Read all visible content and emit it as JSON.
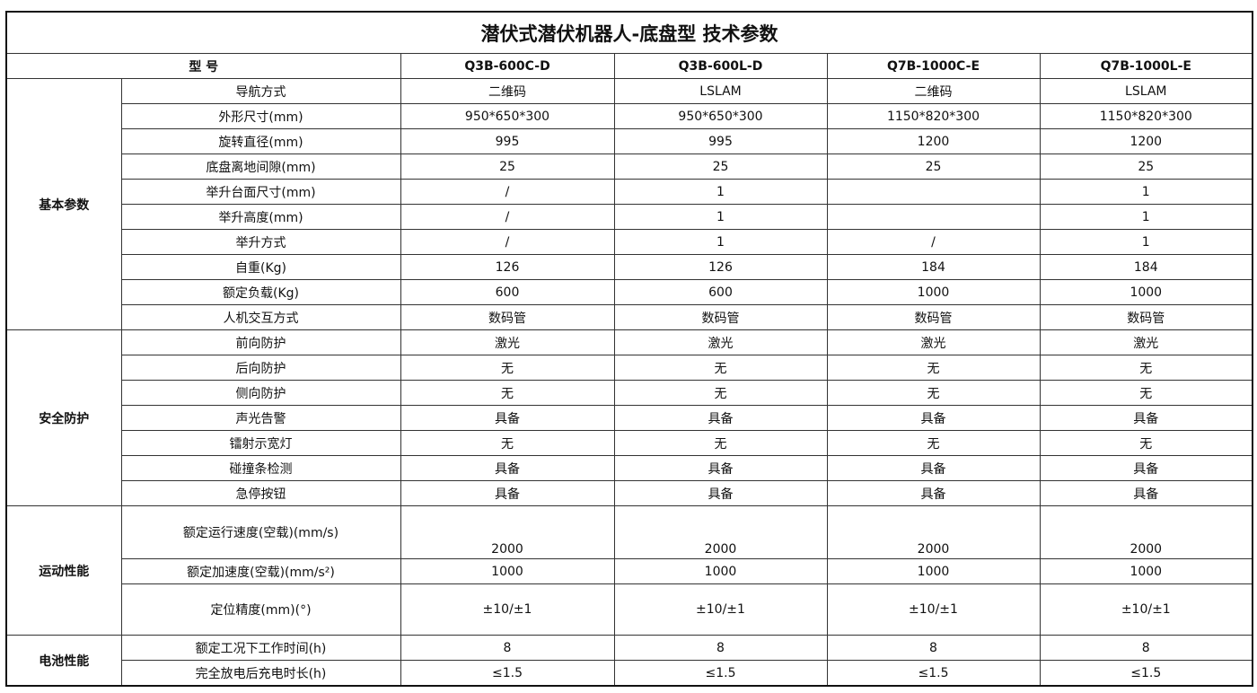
{
  "title": "潜伏式潜伏机器人-底盘型 技术参数",
  "header": {
    "label": "型 号",
    "models": [
      "Q3B-600C-D",
      "Q3B-600L-D",
      "Q7B-1000C-E",
      "Q7B-1000L-E"
    ]
  },
  "groups": [
    {
      "name": "基本参数",
      "rows": [
        {
          "param": "导航方式",
          "values": [
            "二维码",
            "LSLAM",
            "二维码",
            "LSLAM"
          ]
        },
        {
          "param": "外形尺寸(mm)",
          "values": [
            "950*650*300",
            "950*650*300",
            "1150*820*300",
            "1150*820*300"
          ]
        },
        {
          "param": "旋转直径(mm)",
          "values": [
            "995",
            "995",
            "1200",
            "1200"
          ]
        },
        {
          "param": "底盘离地间隙(mm)",
          "values": [
            "25",
            "25",
            "25",
            "25"
          ]
        },
        {
          "param": "举升台面尺寸(mm)",
          "values": [
            "/",
            "1",
            "",
            "1"
          ]
        },
        {
          "param": "举升高度(mm)",
          "values": [
            "/",
            "1",
            "",
            "1"
          ]
        },
        {
          "param": "举升方式",
          "values": [
            "/",
            "1",
            "/",
            "1"
          ]
        },
        {
          "param": "自重(Kg)",
          "values": [
            "126",
            "126",
            "184",
            "184"
          ]
        },
        {
          "param": "额定负载(Kg)",
          "values": [
            "600",
            "600",
            "1000",
            "1000"
          ]
        },
        {
          "param": "人机交互方式",
          "values": [
            "数码管",
            "数码管",
            "数码管",
            "数码管"
          ]
        }
      ]
    },
    {
      "name": "安全防护",
      "rows": [
        {
          "param": "前向防护",
          "values": [
            "激光",
            "激光",
            "激光",
            "激光"
          ]
        },
        {
          "param": "后向防护",
          "values": [
            "无",
            "无",
            "无",
            "无"
          ]
        },
        {
          "param": "侧向防护",
          "values": [
            "无",
            "无",
            "无",
            "无"
          ]
        },
        {
          "param": "声光告警",
          "values": [
            "具备",
            "具备",
            "具备",
            "具备"
          ]
        },
        {
          "param": "镭射示宽灯",
          "values": [
            "无",
            "无",
            "无",
            "无"
          ]
        },
        {
          "param": "碰撞条检测",
          "values": [
            "具备",
            "具备",
            "具备",
            "具备"
          ]
        },
        {
          "param": "急停按钮",
          "values": [
            "具备",
            "具备",
            "具备",
            "具备"
          ]
        }
      ]
    },
    {
      "name": "运动性能",
      "rows": [
        {
          "param": "额定运行速度(空载)(mm/s)",
          "values": [
            "2000",
            "2000",
            "2000",
            "2000"
          ],
          "tall": true,
          "low": true
        },
        {
          "param": "额定加速度(空载)(mm/s²)",
          "values": [
            "1000",
            "1000",
            "1000",
            "1000"
          ]
        },
        {
          "param": "定位精度(mm)(°)",
          "values": [
            "±10/±1",
            "±10/±1",
            "±10/±1",
            "±10/±1"
          ],
          "tall": true
        }
      ]
    },
    {
      "name": "电池性能",
      "rows": [
        {
          "param": "额定工况下工作时间(h)",
          "values": [
            "8",
            "8",
            "8",
            "8"
          ]
        },
        {
          "param": "完全放电后充电时长(h)",
          "values": [
            "≤1.5",
            "≤1.5",
            "≤1.5",
            "≤1.5"
          ]
        }
      ]
    }
  ]
}
